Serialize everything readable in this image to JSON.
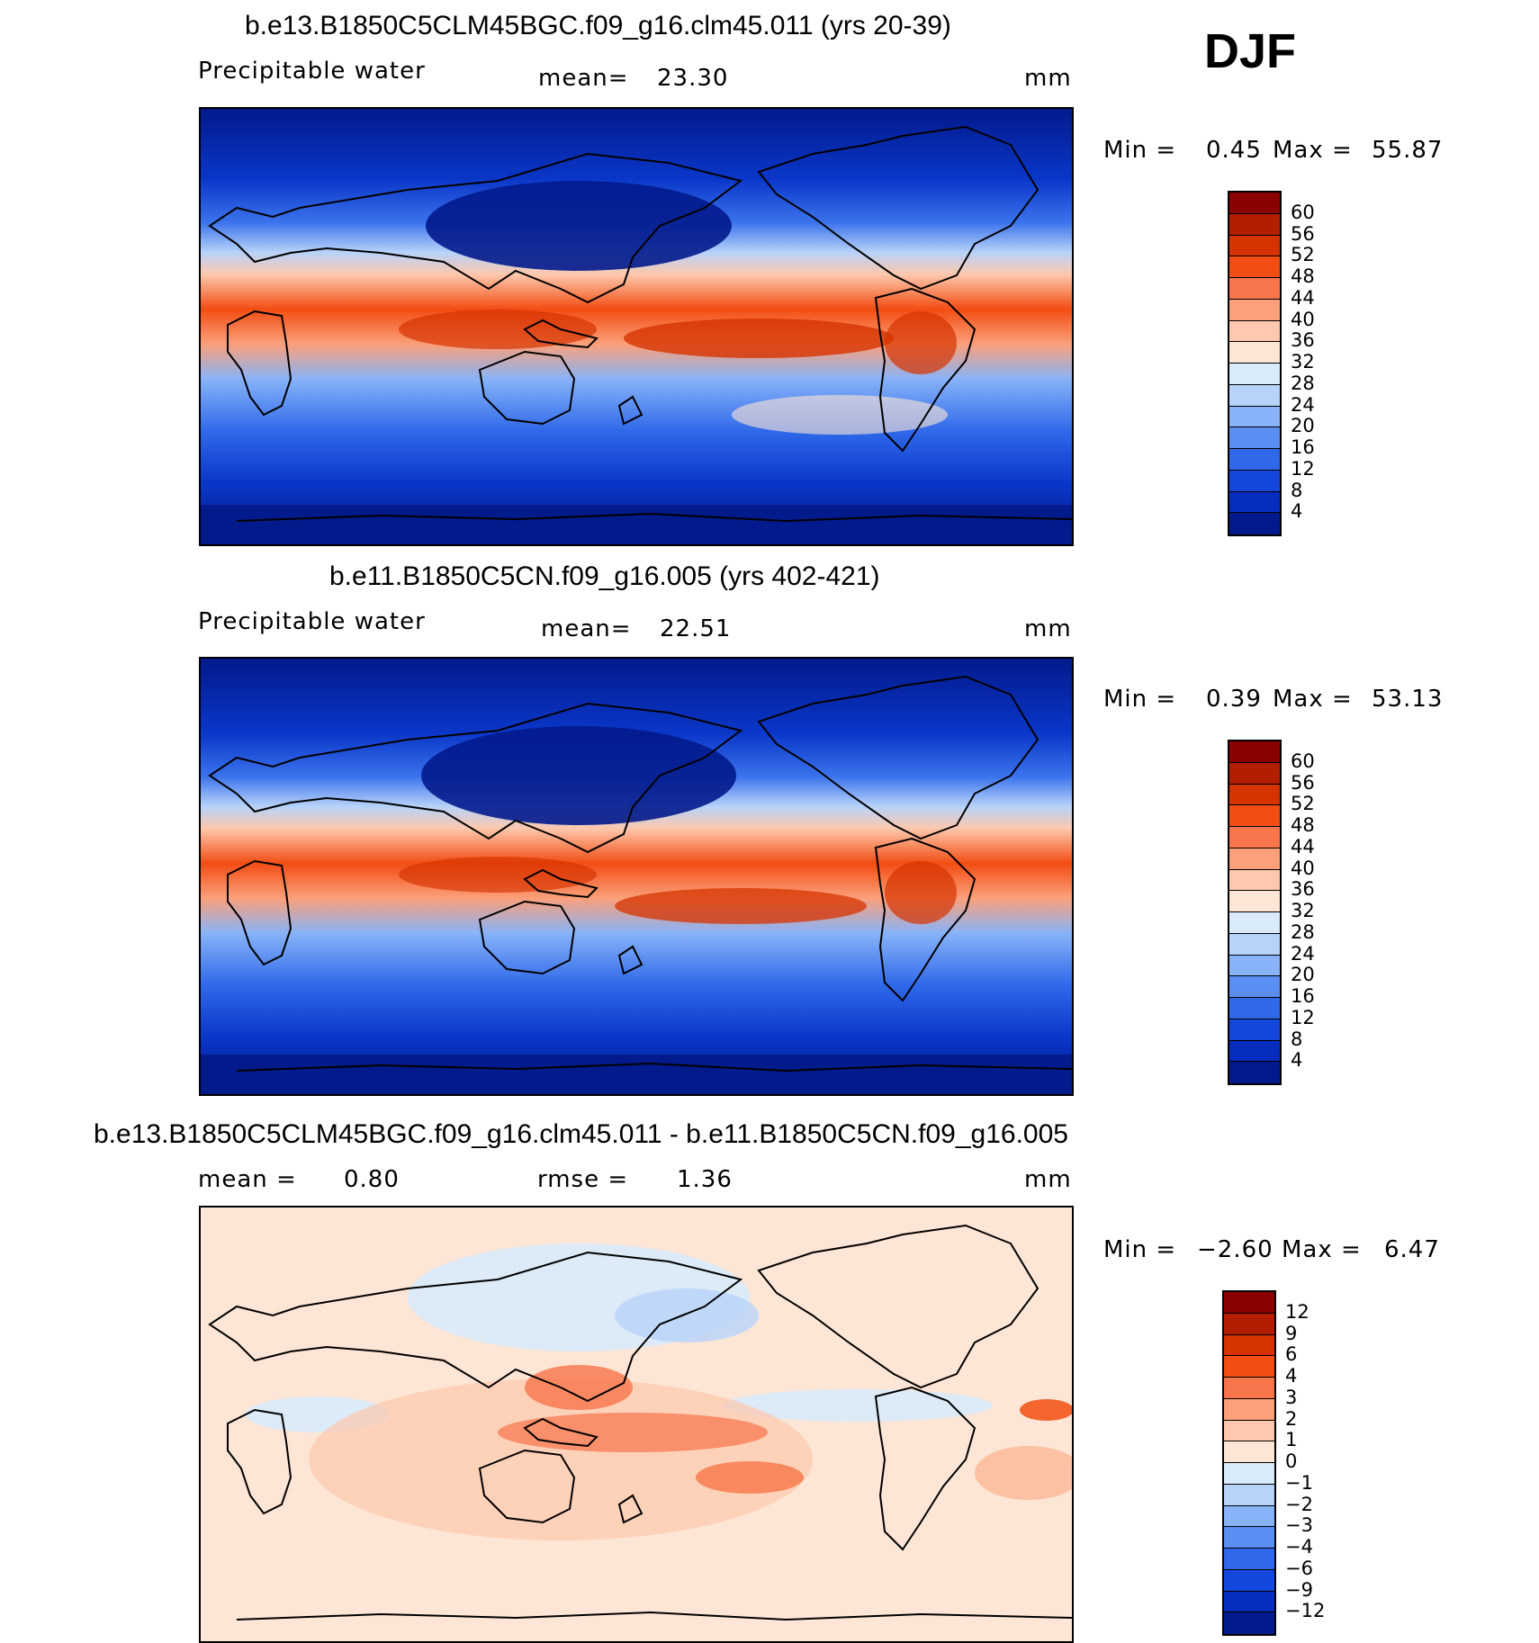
{
  "season": "DJF",
  "panels": [
    {
      "title": "b.e13.B1850C5CLM45BGC.f09_g16.clm45.011 (yrs 20-39)",
      "variable": "Precipitable water",
      "stat1_label": "mean=",
      "stat1_value": "23.30",
      "stat2_label": "",
      "stat2_value": "",
      "units": "mm",
      "min_label": "Min =",
      "min_value": "0.45",
      "max_label": "Max =",
      "max_value": "55.87",
      "colorbar": {
        "levels": [
          "60",
          "56",
          "52",
          "48",
          "44",
          "40",
          "36",
          "32",
          "28",
          "24",
          "20",
          "16",
          "12",
          "8",
          "4"
        ],
        "colors": [
          "#8b0000",
          "#b41e00",
          "#d63300",
          "#f24d13",
          "#f8744a",
          "#fba07a",
          "#fdc8ad",
          "#fde6d6",
          "#d9eafb",
          "#b8d3fa",
          "#88b3f8",
          "#5a8ef2",
          "#2f69ea",
          "#1448dd",
          "#062dbd",
          "#021a8c"
        ]
      }
    },
    {
      "title": "b.e11.B1850C5CN.f09_g16.005 (yrs 402-421)",
      "variable": "Precipitable water",
      "stat1_label": "mean=",
      "stat1_value": "22.51",
      "stat2_label": "",
      "stat2_value": "",
      "units": "mm",
      "min_label": "Min =",
      "min_value": "0.39",
      "max_label": "Max =",
      "max_value": "53.13",
      "colorbar": {
        "levels": [
          "60",
          "56",
          "52",
          "48",
          "44",
          "40",
          "36",
          "32",
          "28",
          "24",
          "20",
          "16",
          "12",
          "8",
          "4"
        ],
        "colors": [
          "#8b0000",
          "#b41e00",
          "#d63300",
          "#f24d13",
          "#f8744a",
          "#fba07a",
          "#fdc8ad",
          "#fde6d6",
          "#d9eafb",
          "#b8d3fa",
          "#88b3f8",
          "#5a8ef2",
          "#2f69ea",
          "#1448dd",
          "#062dbd",
          "#021a8c"
        ]
      }
    },
    {
      "title": "b.e13.B1850C5CLM45BGC.f09_g16.clm45.011 - b.e11.B1850C5CN.f09_g16.005",
      "variable": "",
      "stat1_label": "mean =",
      "stat1_value": "0.80",
      "stat2_label": "rmse =",
      "stat2_value": "1.36",
      "units": "mm",
      "min_label": "Min =",
      "min_value": "−2.60",
      "max_label": "Max =",
      "max_value": "6.47",
      "colorbar": {
        "levels": [
          "12",
          "9",
          "6",
          "4",
          "3",
          "2",
          "1",
          "0",
          "−1",
          "−2",
          "−3",
          "−4",
          "−6",
          "−9",
          "−12"
        ],
        "colors": [
          "#8b0000",
          "#b41e00",
          "#d63300",
          "#f24d13",
          "#f8744a",
          "#fba07a",
          "#fdc8ad",
          "#fde6d6",
          "#d9eafb",
          "#b8d3fa",
          "#88b3f8",
          "#5a8ef2",
          "#2f69ea",
          "#1448dd",
          "#062dbd",
          "#021a8c"
        ]
      }
    }
  ]
}
